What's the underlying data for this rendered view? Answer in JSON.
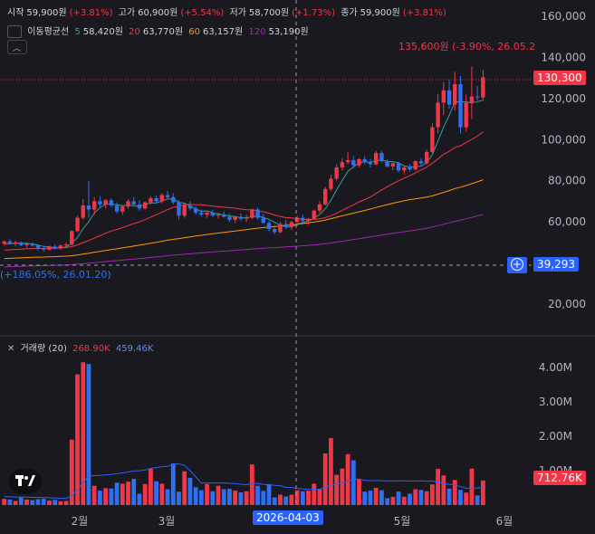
{
  "header": {
    "open_label": "시작",
    "open_value": "59,900원",
    "open_pct": "(+3.81%)",
    "high_label": "고가",
    "high_value": "60,900원",
    "high_pct": "(+5.54%)",
    "low_label": "저가",
    "low_value": "58,700원",
    "low_pct": "(+1.73%)",
    "close_label": "종가",
    "close_value": "59,900원",
    "close_pct": "(+3.81%)"
  },
  "ma_legend": {
    "title": "이동평균선",
    "items": [
      {
        "period": "5",
        "value": "58,420원",
        "color": "#26a69a"
      },
      {
        "period": "20",
        "value": "63,770원",
        "color": "#f23645"
      },
      {
        "period": "60",
        "value": "63,157원",
        "color": "#ff9800"
      },
      {
        "period": "120",
        "value": "53,190원",
        "color": "#9c27b0"
      }
    ]
  },
  "volume_legend": {
    "title": "거래량 (20)",
    "v1": "268.90K",
    "v2": "459.46K"
  },
  "tags": {
    "last_price": "130,300",
    "crosshair_price": "39,293",
    "crosshair_date": "2026-04-03",
    "volume_last": "712.76K",
    "max_annotation": "135,600원 (-3.90%, 26.05.2",
    "min_annotation": "(+186.05%, 26.01.20)"
  },
  "chart_data": {
    "type": "candlestick",
    "price_axis": {
      "ticks": [
        "160,000",
        "140,000",
        "120,000",
        "100,000",
        "80,000",
        "60,000",
        "20,000"
      ],
      "range": [
        0,
        170000
      ]
    },
    "volume_axis": {
      "ticks": [
        "4.00M",
        "3.00M",
        "2.00M",
        "1.00M"
      ],
      "range": [
        0,
        4400000
      ]
    },
    "x_ticks": [
      "2월",
      "3월",
      "5월",
      "6월"
    ],
    "candles": [
      [
        49500,
        51000,
        48500,
        50500
      ],
      [
        50500,
        51500,
        49000,
        49500
      ],
      [
        49500,
        51000,
        48000,
        50000
      ],
      [
        50000,
        50500,
        48200,
        48700
      ],
      [
        48700,
        50000,
        47500,
        49500
      ],
      [
        49500,
        50000,
        48000,
        48500
      ],
      [
        48500,
        49000,
        46000,
        47000
      ],
      [
        47000,
        48000,
        45500,
        46500
      ],
      [
        46500,
        48500,
        46000,
        48000
      ],
      [
        48000,
        49000,
        46500,
        47000
      ],
      [
        47000,
        49000,
        46500,
        48500
      ],
      [
        48500,
        50000,
        47500,
        49000
      ],
      [
        49000,
        56000,
        48500,
        55500
      ],
      [
        55500,
        63000,
        55000,
        62000
      ],
      [
        62000,
        71000,
        61000,
        68000
      ],
      [
        68000,
        80000,
        62000,
        66000
      ],
      [
        66000,
        72000,
        63500,
        70000
      ],
      [
        70000,
        72500,
        67000,
        68500
      ],
      [
        68500,
        71000,
        66500,
        70500
      ],
      [
        70500,
        71500,
        67000,
        68000
      ],
      [
        68000,
        69500,
        64000,
        65000
      ],
      [
        65000,
        68000,
        63500,
        67500
      ],
      [
        67500,
        71000,
        66500,
        70000
      ],
      [
        70000,
        72000,
        67500,
        68500
      ],
      [
        68500,
        70500,
        65500,
        66500
      ],
      [
        66500,
        70000,
        66000,
        69500
      ],
      [
        69500,
        72500,
        68500,
        71500
      ],
      [
        71500,
        73000,
        69000,
        70000
      ],
      [
        70000,
        74000,
        69000,
        73000
      ],
      [
        73000,
        75000,
        71000,
        72000
      ],
      [
        72000,
        74000,
        68500,
        69500
      ],
      [
        69500,
        70500,
        61000,
        63000
      ],
      [
        63000,
        69000,
        62000,
        68000
      ],
      [
        68000,
        70000,
        65500,
        66500
      ],
      [
        66500,
        67500,
        63500,
        64500
      ],
      [
        64500,
        66000,
        62500,
        63500
      ],
      [
        63500,
        65000,
        62000,
        64500
      ],
      [
        64500,
        66000,
        62500,
        63000
      ],
      [
        63000,
        64500,
        61500,
        63500
      ],
      [
        63500,
        65000,
        62000,
        62500
      ],
      [
        62500,
        64000,
        60000,
        61000
      ],
      [
        61000,
        63000,
        59500,
        62500
      ],
      [
        62500,
        64000,
        60500,
        61500
      ],
      [
        61500,
        63500,
        60000,
        62000
      ],
      [
        62000,
        66500,
        61500,
        66000
      ],
      [
        66000,
        67000,
        61000,
        62000
      ],
      [
        62000,
        64000,
        59000,
        59500
      ],
      [
        59500,
        60500,
        55500,
        56500
      ],
      [
        56500,
        58500,
        54000,
        55000
      ],
      [
        55000,
        60000,
        54500,
        59000
      ],
      [
        59000,
        61000,
        56500,
        57500
      ],
      [
        57500,
        60500,
        56000,
        59900
      ],
      [
        59900,
        63000,
        58000,
        62000
      ],
      [
        62000,
        63500,
        59500,
        60500
      ],
      [
        60500,
        62000,
        58500,
        61500
      ],
      [
        61500,
        66000,
        61000,
        65500
      ],
      [
        65500,
        70000,
        64500,
        68500
      ],
      [
        68500,
        77000,
        68000,
        76000
      ],
      [
        76000,
        83000,
        75000,
        81000
      ],
      [
        81000,
        88000,
        80000,
        86500
      ],
      [
        86500,
        91000,
        85000,
        89000
      ],
      [
        89000,
        94000,
        88000,
        90000
      ],
      [
        90000,
        92000,
        86000,
        87500
      ],
      [
        87500,
        91000,
        86500,
        90500
      ],
      [
        90500,
        92000,
        88000,
        89000
      ],
      [
        89000,
        90500,
        86500,
        88000
      ],
      [
        88000,
        94500,
        87500,
        93500
      ],
      [
        93500,
        94500,
        89000,
        89500
      ],
      [
        89500,
        90500,
        86500,
        87000
      ],
      [
        87000,
        89000,
        85000,
        88500
      ],
      [
        88500,
        89500,
        84000,
        85000
      ],
      [
        85000,
        87000,
        83000,
        86500
      ],
      [
        86500,
        88000,
        84500,
        85500
      ],
      [
        85500,
        90000,
        85000,
        89500
      ],
      [
        89500,
        91000,
        87500,
        88500
      ],
      [
        88500,
        95000,
        88000,
        94000
      ],
      [
        94000,
        108000,
        93500,
        106000
      ],
      [
        106000,
        122000,
        103000,
        118000
      ],
      [
        118000,
        128000,
        112000,
        124000
      ],
      [
        124000,
        129000,
        115000,
        117000
      ],
      [
        117000,
        133000,
        114000,
        127000
      ],
      [
        127000,
        131000,
        103000,
        106000
      ],
      [
        106000,
        122000,
        104000,
        118000
      ],
      [
        118000,
        135600,
        110000,
        121000
      ],
      [
        121000,
        126000,
        119000,
        120500
      ],
      [
        120500,
        134000,
        119000,
        130300
      ]
    ],
    "volumes": [
      180000,
      160000,
      120000,
      220000,
      160000,
      140000,
      170000,
      180000,
      130000,
      150000,
      110000,
      120000,
      1900000,
      3800000,
      4150000,
      4100000,
      560000,
      420000,
      490000,
      480000,
      650000,
      620000,
      680000,
      760000,
      330000,
      610000,
      1050000,
      690000,
      620000,
      460000,
      1210000,
      390000,
      980000,
      790000,
      520000,
      430000,
      610000,
      400000,
      560000,
      460000,
      470000,
      420000,
      370000,
      400000,
      1180000,
      560000,
      410000,
      610000,
      220000,
      300000,
      250000,
      300000,
      430000,
      400000,
      420000,
      620000,
      450000,
      1500000,
      1950000,
      880000,
      1060000,
      1480000,
      1300000,
      760000,
      390000,
      420000,
      500000,
      430000,
      200000,
      240000,
      390000,
      240000,
      330000,
      460000,
      440000,
      400000,
      600000,
      1050000,
      860000,
      480000,
      730000,
      440000,
      360000,
      1060000,
      280000,
      712760
    ]
  },
  "colors": {
    "up": "#f23645",
    "down": "#2f6ff2",
    "ma5": "#26a69a",
    "ma20": "#f23645",
    "ma60": "#ff9800",
    "ma120": "#9c27b0",
    "vol_ma": "#2962ff",
    "crosshair_tag": "#2962ff"
  }
}
